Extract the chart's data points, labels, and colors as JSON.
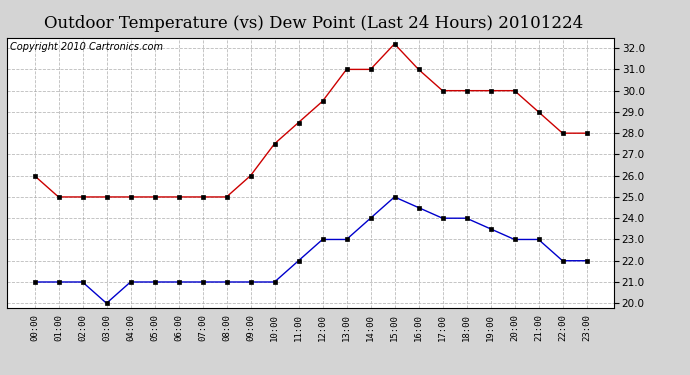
{
  "title": "Outdoor Temperature (vs) Dew Point (Last 24 Hours) 20101224",
  "copyright_text": "Copyright 2010 Cartronics.com",
  "x_labels": [
    "00:00",
    "01:00",
    "02:00",
    "03:00",
    "04:00",
    "05:00",
    "06:00",
    "07:00",
    "08:00",
    "09:00",
    "10:00",
    "11:00",
    "12:00",
    "13:00",
    "14:00",
    "15:00",
    "16:00",
    "17:00",
    "18:00",
    "19:00",
    "20:00",
    "21:00",
    "22:00",
    "23:00"
  ],
  "temp_data": [
    26.0,
    25.0,
    25.0,
    25.0,
    25.0,
    25.0,
    25.0,
    25.0,
    25.0,
    26.0,
    27.5,
    28.5,
    29.5,
    31.0,
    31.0,
    32.2,
    31.0,
    30.0,
    30.0,
    30.0,
    30.0,
    29.0,
    28.0,
    28.0
  ],
  "dew_data": [
    21.0,
    21.0,
    21.0,
    20.0,
    21.0,
    21.0,
    21.0,
    21.0,
    21.0,
    21.0,
    21.0,
    22.0,
    23.0,
    23.0,
    24.0,
    25.0,
    24.5,
    24.0,
    24.0,
    23.5,
    23.0,
    23.0,
    22.0,
    22.0
  ],
  "temp_color": "#cc0000",
  "dew_color": "#0000cc",
  "ylim": [
    19.8,
    32.5
  ],
  "yticks": [
    20.0,
    21.0,
    22.0,
    23.0,
    24.0,
    25.0,
    26.0,
    27.0,
    28.0,
    29.0,
    30.0,
    31.0,
    32.0
  ],
  "bg_color": "#d4d4d4",
  "plot_bg_color": "#ffffff",
  "grid_color": "#aaaaaa",
  "title_fontsize": 12,
  "copyright_fontsize": 7
}
